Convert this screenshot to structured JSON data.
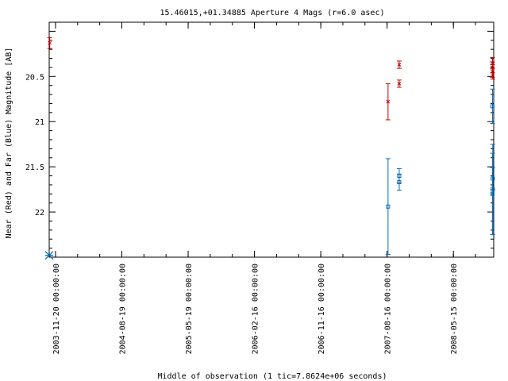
{
  "chart_data": {
    "type": "scatter",
    "title": "15.46015,+01.34885   Aperture 4 Mags (r=6.0 asec)",
    "xlabel": "Middle of observation (1 tic=7.8624e+06 seconds)",
    "ylabel": "Near (Red) and Far (Blue) Magnitude [AB]",
    "y_inverted": true,
    "ylim": [
      22.5,
      19.9
    ],
    "xlim": [
      "2003-10-25",
      "2008-10-28"
    ],
    "x_tick_labels": [
      "2003-11-20 00:00:00",
      "2004-08-19 00:00:00",
      "2005-05-19 00:00:00",
      "2006-02-16 00:00:00",
      "2006-11-16 00:00:00",
      "2007-08-16 00:00:00",
      "2008-05-15 00:00:00"
    ],
    "x_ticks": [
      "2003-11-20",
      "2004-08-19",
      "2005-05-19",
      "2006-02-16",
      "2006-11-16",
      "2007-08-16",
      "2008-05-15"
    ],
    "y_tick_labels": [
      "20.5",
      "21",
      "21.5",
      "22"
    ],
    "y_ticks": [
      20.5,
      21.0,
      21.5,
      22.0
    ],
    "grid": false,
    "series": [
      {
        "color": "#cc0000",
        "marker": "x",
        "points": [
          {
            "x": "2003-10-27",
            "y": 20.13,
            "err": 0.06
          },
          {
            "x": "2007-08-20",
            "y": 20.78,
            "err": 0.2
          },
          {
            "x": "2007-10-05",
            "y": 20.37,
            "err": 0.04
          },
          {
            "x": "2007-10-05",
            "y": 20.58,
            "err": 0.04
          },
          {
            "x": "2008-10-23",
            "y": 20.35,
            "err": 0.06
          },
          {
            "x": "2008-10-23",
            "y": 20.4,
            "err": 0.06
          },
          {
            "x": "2008-10-23",
            "y": 20.44,
            "err": 0.07
          },
          {
            "x": "2008-10-24",
            "y": 20.47,
            "err": 0.06
          }
        ]
      },
      {
        "color": "#0070c0",
        "marker": "square",
        "points": [
          {
            "x": "2007-08-20",
            "y": 21.94,
            "err": 0.53
          },
          {
            "x": "2007-10-05",
            "y": 21.6,
            "err": 0.08
          },
          {
            "x": "2007-10-05",
            "y": 21.67,
            "err": 0.09
          },
          {
            "x": "2008-10-23",
            "y": 20.83,
            "err": 0.19
          },
          {
            "x": "2008-10-23",
            "y": 21.8,
            "err": 0.45
          },
          {
            "x": "2008-10-24",
            "y": 21.63,
            "err": 0.12
          },
          {
            "x": "2008-10-24",
            "y": 21.75,
            "err": 0.5
          }
        ]
      }
    ],
    "upper_limit_marker": {
      "x": "2003-10-25",
      "y": 22.48,
      "color": "#0070c0",
      "marker": "asterisk"
    }
  }
}
